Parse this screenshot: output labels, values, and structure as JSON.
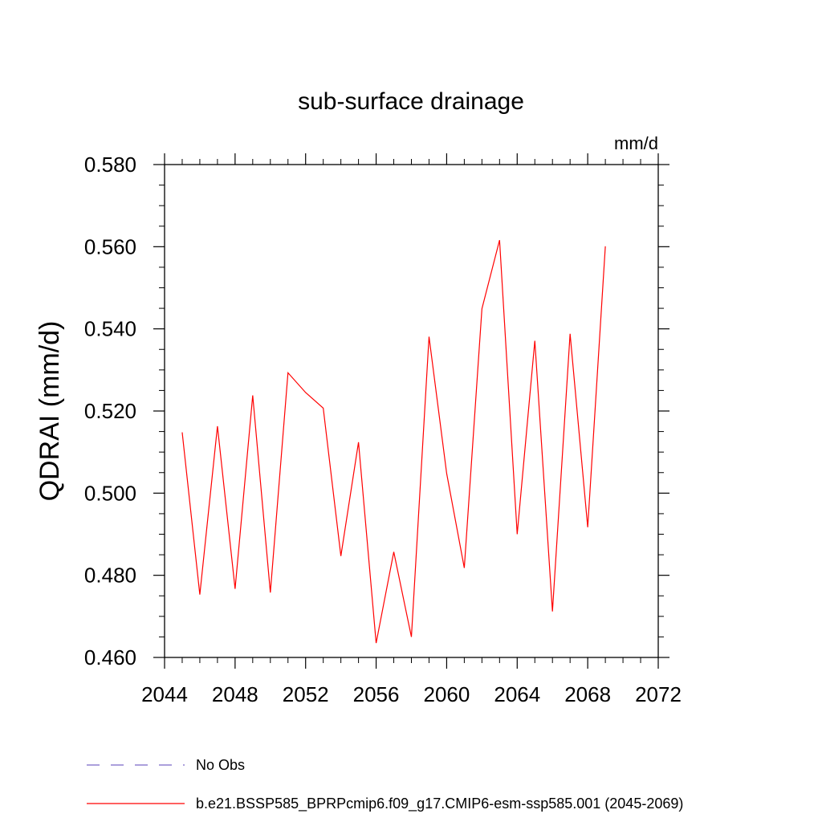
{
  "chart_data": {
    "type": "line",
    "title": "sub-surface drainage",
    "units": "mm/d",
    "ylabel": "QDRAI  (mm/d)",
    "xlabel": "",
    "xlim": [
      2044,
      2072
    ],
    "ylim": [
      0.46,
      0.58
    ],
    "xticks": [
      2044,
      2048,
      2052,
      2056,
      2060,
      2064,
      2068,
      2072
    ],
    "xtick_labels": [
      "2044",
      "2048",
      "2052",
      "2056",
      "2060",
      "2064",
      "2068",
      "2072"
    ],
    "yticks": [
      0.46,
      0.48,
      0.5,
      0.52,
      0.54,
      0.56,
      0.58
    ],
    "ytick_labels": [
      "0.460",
      "0.480",
      "0.500",
      "0.520",
      "0.540",
      "0.560",
      "0.580"
    ],
    "grid": false,
    "legend_position": "bottom",
    "series": [
      {
        "name": "b.e21.BSSP585_BPRPcmip6.f09_g17.CMIP6-esm-ssp585.001 (2045-2069)",
        "color": "#ff0000",
        "style": "solid",
        "x": [
          2045,
          2046,
          2047,
          2048,
          2049,
          2050,
          2051,
          2052,
          2053,
          2054,
          2055,
          2056,
          2057,
          2058,
          2059,
          2060,
          2061,
          2062,
          2063,
          2064,
          2065,
          2066,
          2067,
          2068,
          2069
        ],
        "y": [
          0.5148,
          0.4753,
          0.5163,
          0.4767,
          0.5238,
          0.4758,
          0.5293,
          0.5245,
          0.5207,
          0.4847,
          0.5124,
          0.4635,
          0.4857,
          0.465,
          0.5381,
          0.5048,
          0.4818,
          0.5449,
          0.5616,
          0.49,
          0.5371,
          0.4712,
          0.5388,
          0.4917,
          0.5601
        ]
      }
    ],
    "legend": [
      {
        "label": "No Obs",
        "color": "#7b68c8",
        "style": "dashed"
      },
      {
        "label": "b.e21.BSSP585_BPRPcmip6.f09_g17.CMIP6-esm-ssp585.001 (2045-2069)",
        "color": "#ff0000",
        "style": "solid"
      }
    ]
  }
}
